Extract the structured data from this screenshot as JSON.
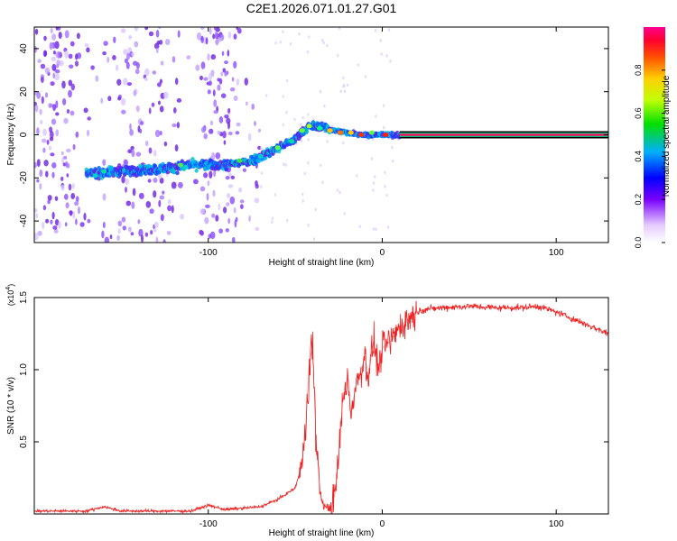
{
  "title": "C2E1.2026.071.01.27.G01",
  "chart_data": [
    {
      "type": "heatmap",
      "title": "C2E1.2026.071.01.27.G01",
      "xlabel": "Height of straight line (km)",
      "ylabel": "Frequency (Hz)",
      "xlim": [
        -200,
        130
      ],
      "ylim": [
        -50,
        50
      ],
      "xticks": [
        -100,
        0,
        100
      ],
      "xtick_labels": [
        "-100",
        "0",
        "100"
      ],
      "yticks": [
        -40,
        -20,
        0,
        20,
        40
      ],
      "ytick_labels": [
        "-40",
        "-20",
        "0",
        "20",
        "40"
      ],
      "colorbar": {
        "label": "Normalized spectral amplitude",
        "range": [
          0,
          1
        ],
        "ticks": [
          0,
          0.2,
          0.4,
          0.6,
          0.8
        ],
        "tick_labels": [
          "0.0",
          "0.2",
          "0.4",
          "0.6",
          "0.8"
        ]
      },
      "ridge": {
        "x": [
          -168,
          -150,
          -130,
          -110,
          -90,
          -75,
          -62,
          -50,
          -42,
          -35,
          -28,
          -20,
          -10,
          0,
          10,
          130
        ],
        "y": [
          -18,
          -17,
          -16,
          -14,
          -14,
          -12,
          -7,
          -2,
          4,
          4,
          2,
          1,
          0,
          0,
          0,
          0
        ]
      }
    },
    {
      "type": "line",
      "xlabel": "Height of straight line (km)",
      "ylabel": "SNR (10 * v/v)",
      "scale_label": "(x10",
      "scale_exp": "4",
      "scale_close": ")",
      "xlim": [
        -200,
        130
      ],
      "ylim": [
        0,
        1.5
      ],
      "xticks": [
        -100,
        0,
        100
      ],
      "xtick_labels": [
        "-100",
        "0",
        "100"
      ],
      "yticks": [
        0.5,
        1.0,
        1.5
      ],
      "ytick_labels": [
        "0.5",
        "1.0",
        "1.5"
      ],
      "series": [
        {
          "name": "SNR",
          "color": "#ee2222",
          "x": [
            -200,
            -170,
            -160,
            -150,
            -110,
            -100,
            -90,
            -70,
            -60,
            -50,
            -46,
            -44,
            -42,
            -40,
            -38,
            -36,
            -35,
            -33,
            -31,
            -29,
            -27,
            -25,
            -23,
            -20,
            -18,
            -15,
            -12,
            -10,
            -8,
            -5,
            -2,
            0,
            5,
            10,
            15,
            20,
            25,
            35,
            50,
            65,
            80,
            90,
            100,
            110,
            120,
            130
          ],
          "values": [
            0.02,
            0.02,
            0.05,
            0.02,
            0.02,
            0.06,
            0.03,
            0.05,
            0.1,
            0.18,
            0.35,
            0.6,
            1.05,
            1.15,
            0.5,
            0.2,
            0.1,
            0.05,
            0.04,
            0.05,
            0.15,
            0.4,
            0.75,
            0.95,
            0.7,
            0.9,
            1.0,
            1.1,
            0.95,
            1.2,
            1.0,
            1.15,
            1.2,
            1.3,
            1.35,
            1.4,
            1.42,
            1.43,
            1.44,
            1.43,
            1.43,
            1.44,
            1.4,
            1.35,
            1.3,
            1.25
          ]
        }
      ]
    }
  ]
}
